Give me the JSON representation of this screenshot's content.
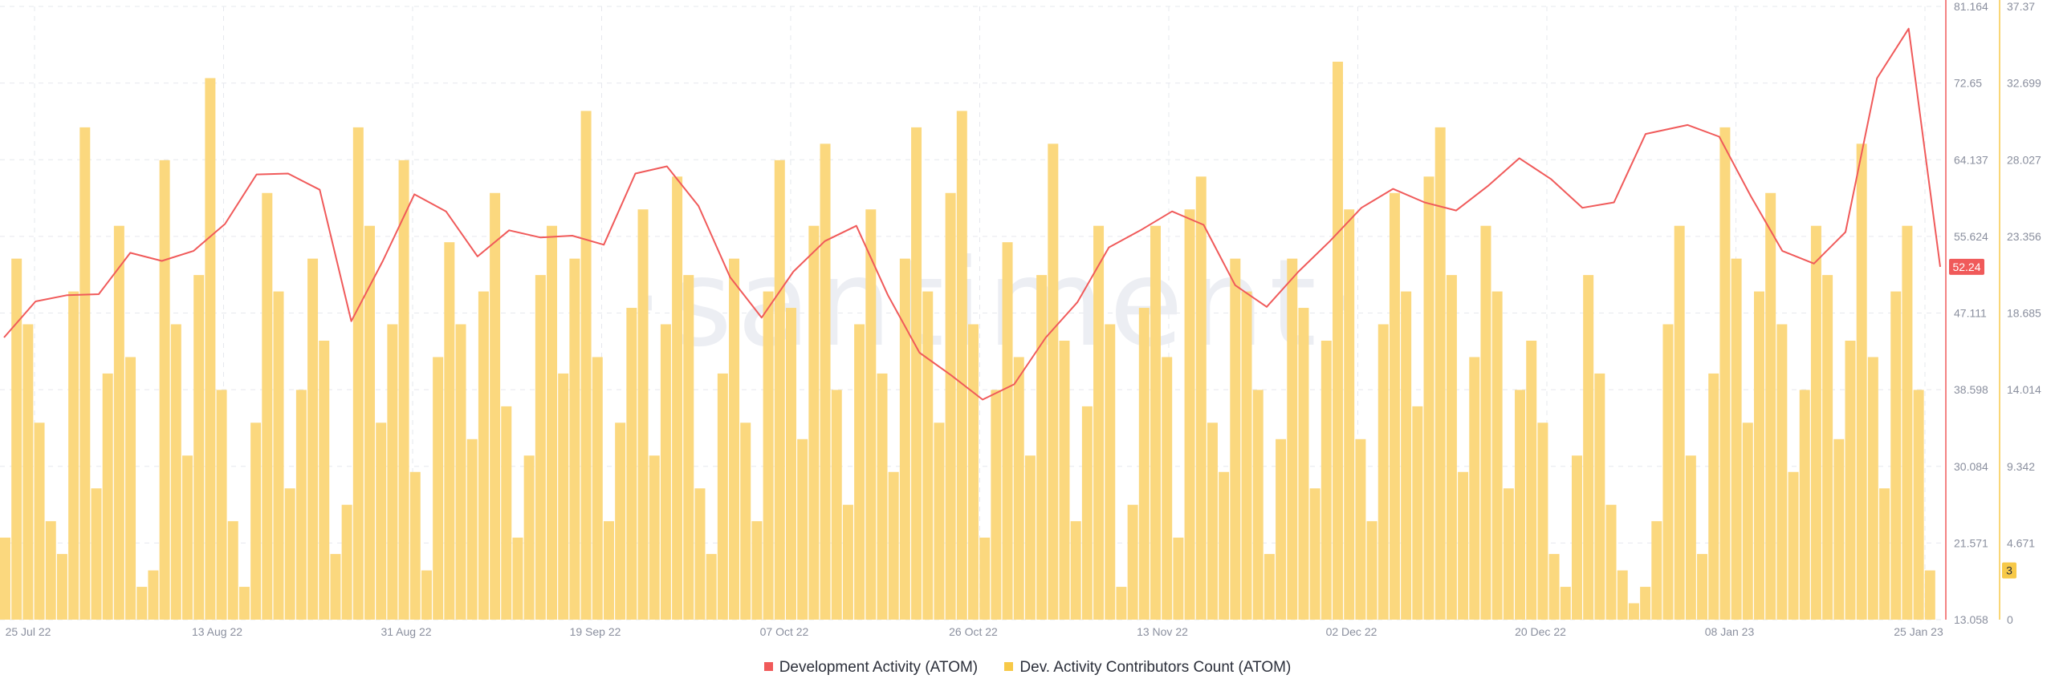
{
  "watermark": "·santiment·",
  "legend": {
    "dev_activity": "Development Activity (ATOM)",
    "contributors": "Dev. Activity Contributors Count (ATOM)"
  },
  "colors": {
    "dev_activity": "#f05a5a",
    "contributors": "#f7c948",
    "contributors_fill": "#fbd87e"
  },
  "chart_data": {
    "type": "line",
    "x_ticks": [
      "25 Jul 22",
      "13 Aug 22",
      "31 Aug 22",
      "19 Sep 22",
      "07 Oct 22",
      "26 Oct 22",
      "13 Nov 22",
      "02 Dec 22",
      "20 Dec 22",
      "08 Jan 23",
      "25 Jan 23"
    ],
    "x_range": [
      "2022-07-25",
      "2023-01-25"
    ],
    "y_left": {
      "ticks": [
        "81.164",
        "72.65",
        "64.137",
        "55.624",
        "47.111",
        "38.598",
        "30.084",
        "21.571",
        "13.058"
      ],
      "range": [
        13.058,
        81.164
      ]
    },
    "y_right": {
      "ticks": [
        "37.37",
        "32.699",
        "28.027",
        "23.356",
        "18.685",
        "14.014",
        "9.342",
        "4.671",
        "0"
      ],
      "range": [
        0,
        37.37
      ]
    },
    "grid": true,
    "legend_position": "bottom",
    "last_values": {
      "dev_activity": "52.24",
      "contributors": "3"
    },
    "series": [
      {
        "name": "Development Activity (ATOM)",
        "type": "line",
        "axis": "left",
        "points": [
          [
            "2022-07-25",
            44.4
          ],
          [
            "2022-07-28",
            48.4
          ],
          [
            "2022-07-31",
            49.1
          ],
          [
            "2022-08-03",
            49.2
          ],
          [
            "2022-08-06",
            53.8
          ],
          [
            "2022-08-09",
            52.9
          ],
          [
            "2022-08-12",
            54.0
          ],
          [
            "2022-08-15",
            57.0
          ],
          [
            "2022-08-18",
            62.5
          ],
          [
            "2022-08-21",
            62.6
          ],
          [
            "2022-08-24",
            60.8
          ],
          [
            "2022-08-27",
            46.2
          ],
          [
            "2022-08-30",
            52.9
          ],
          [
            "2022-09-02",
            60.3
          ],
          [
            "2022-09-05",
            58.4
          ],
          [
            "2022-09-08",
            53.4
          ],
          [
            "2022-09-11",
            56.3
          ],
          [
            "2022-09-14",
            55.5
          ],
          [
            "2022-09-17",
            55.7
          ],
          [
            "2022-09-20",
            54.7
          ],
          [
            "2022-09-23",
            62.6
          ],
          [
            "2022-09-26",
            63.4
          ],
          [
            "2022-09-29",
            59.0
          ],
          [
            "2022-10-02",
            51.1
          ],
          [
            "2022-10-05",
            46.6
          ],
          [
            "2022-10-08",
            51.7
          ],
          [
            "2022-10-11",
            55.1
          ],
          [
            "2022-10-14",
            56.8
          ],
          [
            "2022-10-17",
            49.1
          ],
          [
            "2022-10-20",
            42.7
          ],
          [
            "2022-10-23",
            40.2
          ],
          [
            "2022-10-26",
            37.5
          ],
          [
            "2022-10-29",
            39.2
          ],
          [
            "2022-11-01",
            44.4
          ],
          [
            "2022-11-04",
            48.3
          ],
          [
            "2022-11-07",
            54.4
          ],
          [
            "2022-11-10",
            56.3
          ],
          [
            "2022-11-13",
            58.4
          ],
          [
            "2022-11-16",
            56.9
          ],
          [
            "2022-11-19",
            50.2
          ],
          [
            "2022-11-22",
            47.8
          ],
          [
            "2022-11-25",
            51.7
          ],
          [
            "2022-11-28",
            55.1
          ],
          [
            "2022-12-01",
            58.8
          ],
          [
            "2022-12-04",
            60.9
          ],
          [
            "2022-12-07",
            59.4
          ],
          [
            "2022-12-10",
            58.5
          ],
          [
            "2022-12-13",
            61.2
          ],
          [
            "2022-12-16",
            64.3
          ],
          [
            "2022-12-19",
            62.0
          ],
          [
            "2022-12-22",
            58.8
          ],
          [
            "2022-12-25",
            59.4
          ],
          [
            "2022-12-28",
            67.0
          ],
          [
            "2023-01-01",
            68.0
          ],
          [
            "2023-01-04",
            66.7
          ],
          [
            "2023-01-07",
            60.1
          ],
          [
            "2023-01-10",
            54.0
          ],
          [
            "2023-01-13",
            52.6
          ],
          [
            "2023-01-16",
            56.1
          ],
          [
            "2023-01-19",
            73.2
          ],
          [
            "2023-01-22",
            78.7
          ],
          [
            "2023-01-25",
            52.24
          ]
        ]
      },
      {
        "name": "Dev. Activity Contributors Count (ATOM)",
        "type": "bar",
        "axis": "right",
        "values": [
          5,
          22,
          18,
          12,
          6,
          4,
          20,
          30,
          8,
          15,
          24,
          16,
          2,
          3,
          28,
          18,
          10,
          21,
          33,
          14,
          6,
          2,
          12,
          26,
          20,
          8,
          14,
          22,
          17,
          4,
          7,
          30,
          24,
          12,
          18,
          28,
          9,
          3,
          16,
          23,
          18,
          11,
          20,
          26,
          13,
          5,
          10,
          21,
          24,
          15,
          22,
          31,
          16,
          6,
          12,
          19,
          25,
          10,
          18,
          27,
          21,
          8,
          4,
          15,
          22,
          12,
          6,
          20,
          28,
          19,
          11,
          24,
          29,
          14,
          7,
          18,
          25,
          15,
          9,
          22,
          30,
          20,
          12,
          26,
          31,
          18,
          5,
          14,
          23,
          16,
          10,
          21,
          29,
          17,
          6,
          13,
          24,
          18,
          2,
          7,
          19,
          24,
          16,
          5,
          25,
          27,
          12,
          9,
          22,
          20,
          14,
          4,
          11,
          22,
          19,
          8,
          17,
          34,
          25,
          11,
          6,
          18,
          26,
          20,
          13,
          27,
          30,
          21,
          9,
          16,
          24,
          20,
          8,
          14,
          17,
          12,
          4,
          2,
          10,
          21,
          15,
          7,
          3,
          1,
          2,
          6,
          18,
          24,
          10,
          4,
          15,
          30,
          22,
          12,
          20,
          26,
          18,
          9,
          14,
          24,
          21,
          11,
          17,
          29,
          16,
          8,
          20,
          24,
          14,
          3
        ]
      }
    ]
  }
}
